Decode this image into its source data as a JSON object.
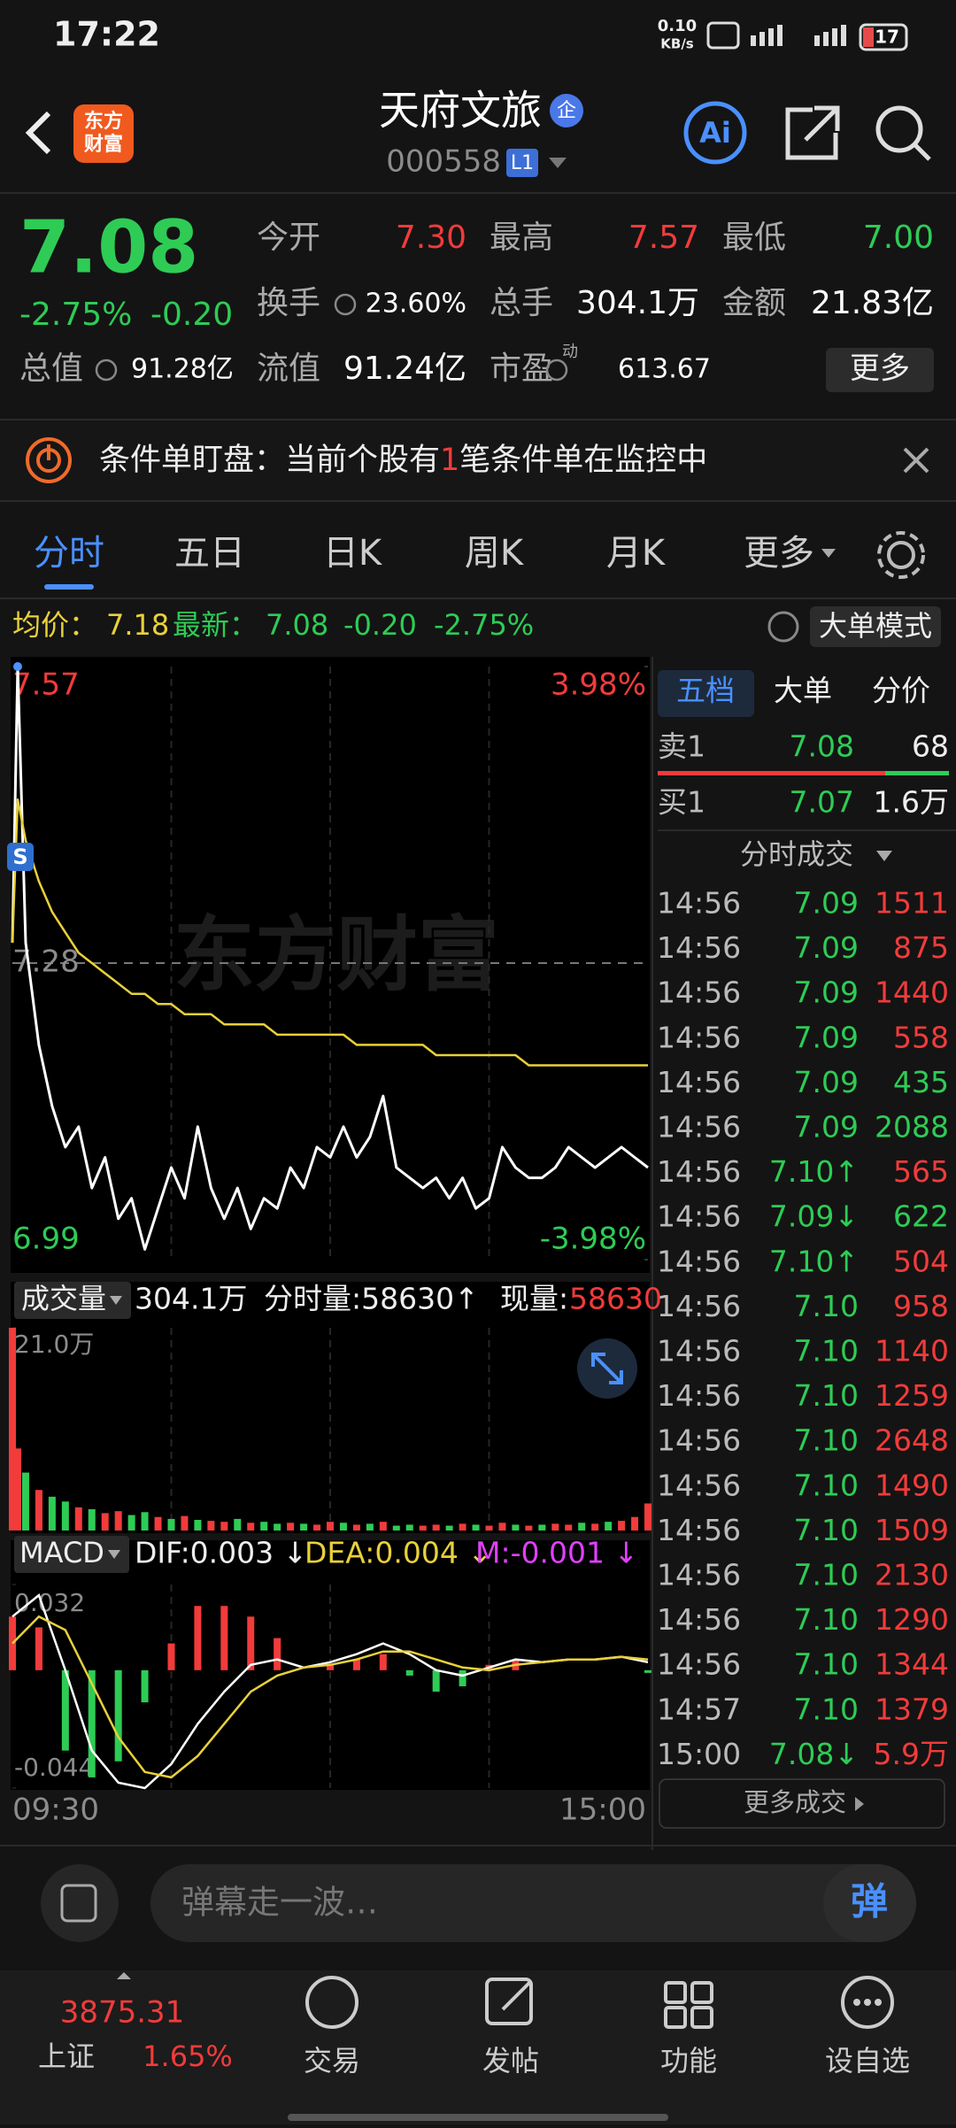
{
  "status_bar": {
    "time": "17:22",
    "net_speed": "0.10",
    "net_unit": "KB/s",
    "battery": "17"
  },
  "header": {
    "logo": [
      "东方",
      "财富"
    ],
    "title": "天府文旅",
    "badge": "企",
    "code": "000558",
    "level": "L1",
    "ai": "Ai"
  },
  "quote": {
    "price": "7.08",
    "change_pct": "-2.75%",
    "change": "-0.20",
    "more": "更多",
    "fields": [
      {
        "label": "今开",
        "value": "7.30",
        "color": "#f23b3b"
      },
      {
        "label": "最高",
        "value": "7.57",
        "color": "#f23b3b"
      },
      {
        "label": "最低",
        "value": "7.00",
        "color": "#2ecc55"
      },
      {
        "label": "换手",
        "value": "23.60%",
        "color": "#ffffff"
      },
      {
        "label": "总手",
        "value": "304.1万",
        "color": "#ffffff"
      },
      {
        "label": "金额",
        "value": "21.83亿",
        "color": "#ffffff"
      },
      {
        "label": "总值",
        "value": "91.28亿",
        "color": "#ffffff"
      },
      {
        "label": "流值",
        "value": "91.24亿",
        "color": "#ffffff"
      },
      {
        "label": "市盈",
        "superscript": "动",
        "value": "613.67",
        "color": "#ffffff"
      }
    ]
  },
  "banner": {
    "text_before": "条件单盯盘：当前个股有",
    "count": "1",
    "text_after": "笔条件单在监控中"
  },
  "tabs": {
    "items": [
      "分时",
      "五日",
      "日K",
      "周K",
      "月K",
      "更多"
    ],
    "active": 0
  },
  "info_bar": {
    "avg_label": "均价：",
    "avg": "7.18",
    "latest_label": "最新：",
    "latest": "7.08",
    "change": "-0.20",
    "change_pct": "-2.75%",
    "mode_button": "大单模式"
  },
  "price_chart": {
    "type": "line",
    "watermark": "东方财富",
    "marker": "S",
    "grid": true,
    "x": [
      "09:30",
      "09:32",
      "09:35",
      "09:40",
      "09:45",
      "09:50",
      "09:55",
      "10:00",
      "10:05",
      "10:10",
      "10:15",
      "10:20",
      "10:25",
      "10:30",
      "10:35",
      "10:40",
      "10:45",
      "10:50",
      "10:55",
      "11:00",
      "11:05",
      "11:10",
      "11:15",
      "11:20",
      "11:25",
      "11:30",
      "13:05",
      "13:10",
      "13:15",
      "13:20",
      "13:25",
      "13:30",
      "13:35",
      "13:40",
      "13:45",
      "13:50",
      "13:55",
      "14:00",
      "14:05",
      "14:10",
      "14:15",
      "14:20",
      "14:25",
      "14:30",
      "14:35",
      "14:40",
      "14:45",
      "14:50",
      "14:55",
      "15:00"
    ],
    "series": [
      {
        "color": "#ffffff",
        "values": [
          7.3,
          7.57,
          7.3,
          7.2,
          7.14,
          7.1,
          7.12,
          7.06,
          7.09,
          7.03,
          7.05,
          7.0,
          7.04,
          7.08,
          7.05,
          7.12,
          7.06,
          7.03,
          7.06,
          7.02,
          7.05,
          7.04,
          7.08,
          7.06,
          7.1,
          7.09,
          7.12,
          7.09,
          7.11,
          7.15,
          7.08,
          7.07,
          7.06,
          7.07,
          7.05,
          7.07,
          7.04,
          7.05,
          7.1,
          7.08,
          7.07,
          7.07,
          7.08,
          7.1,
          7.09,
          7.08,
          7.09,
          7.1,
          7.09,
          7.08
        ]
      },
      {
        "color": "#e8d13a",
        "values": [
          7.3,
          7.44,
          7.4,
          7.36,
          7.33,
          7.31,
          7.29,
          7.28,
          7.27,
          7.26,
          7.25,
          7.25,
          7.24,
          7.24,
          7.23,
          7.23,
          7.23,
          7.22,
          7.22,
          7.22,
          7.22,
          7.21,
          7.21,
          7.21,
          7.21,
          7.21,
          7.21,
          7.2,
          7.2,
          7.2,
          7.2,
          7.2,
          7.2,
          7.19,
          7.19,
          7.19,
          7.19,
          7.19,
          7.19,
          7.19,
          7.18,
          7.18,
          7.18,
          7.18,
          7.18,
          7.18,
          7.18,
          7.18,
          7.18,
          7.18
        ]
      }
    ],
    "ylim": [
      6.99,
      7.57
    ],
    "yticks": [
      6.99,
      7.28,
      7.57
    ],
    "ytick_colors": [
      "#2ecc55",
      "#8c8c8c",
      "#f23b3b"
    ],
    "y2lim": [
      -3.98,
      3.98
    ],
    "y2ticks": [
      {
        "value": -3.98,
        "label": "-3.98%"
      },
      {
        "value": 3.98,
        "label": "3.98%"
      }
    ],
    "y2tick_colors": [
      "#2ecc55",
      "#f23b3b"
    ]
  },
  "volume_chart": {
    "type": "bar",
    "menu": "成交量",
    "total": "304.1万",
    "interval_label": "分时量:58630↑",
    "current_label": "现量:",
    "current": "58630",
    "values": [
      21.0,
      8.5,
      6.0,
      4.2,
      3.5,
      3.0,
      2.4,
      2.2,
      1.8,
      2.0,
      1.6,
      1.9,
      1.4,
      1.2,
      1.5,
      1.1,
      1.0,
      0.9,
      1.2,
      0.8,
      0.9,
      0.7,
      0.8,
      0.7,
      0.6,
      0.9,
      0.8,
      0.6,
      0.7,
      0.9,
      0.5,
      0.6,
      0.5,
      0.6,
      0.5,
      0.7,
      0.6,
      0.5,
      0.8,
      0.6,
      0.5,
      0.6,
      0.7,
      0.6,
      0.8,
      0.7,
      0.9,
      1.0,
      1.4,
      2.8
    ],
    "colors": [
      "#f23b3b",
      "#f23b3b",
      "#2ecc55",
      "#f23b3b",
      "#2ecc55",
      "#2ecc55",
      "#f23b3b",
      "#2ecc55",
      "#f23b3b",
      "#f23b3b",
      "#2ecc55",
      "#2ecc55",
      "#f23b3b",
      "#2ecc55",
      "#f23b3b",
      "#2ecc55",
      "#f23b3b",
      "#f23b3b",
      "#2ecc55",
      "#f23b3b",
      "#2ecc55",
      "#2ecc55",
      "#f23b3b",
      "#2ecc55",
      "#f23b3b",
      "#f23b3b",
      "#2ecc55",
      "#f23b3b",
      "#2ecc55",
      "#f23b3b",
      "#2ecc55",
      "#2ecc55",
      "#f23b3b",
      "#f23b3b",
      "#2ecc55",
      "#f23b3b",
      "#2ecc55",
      "#f23b3b",
      "#f23b3b",
      "#2ecc55",
      "#f23b3b",
      "#2ecc55",
      "#f23b3b",
      "#f23b3b",
      "#2ecc55",
      "#f23b3b",
      "#2ecc55",
      "#f23b3b",
      "#f23b3b",
      "#f23b3b"
    ],
    "ylim": [
      0,
      21
    ],
    "yticks": [
      {
        "value": 21,
        "label": "21.0万"
      }
    ]
  },
  "macd_chart": {
    "type": "macd",
    "menu": "MACD",
    "dif_label": "DIF:0.003 ↓",
    "dea_label": "DEA:0.004 ↓",
    "m_label": "M:-0.001 ↓",
    "x": [
      "09:30",
      "09:40",
      "09:50",
      "10:00",
      "10:10",
      "10:20",
      "10:30",
      "10:40",
      "10:50",
      "11:00",
      "11:10",
      "11:20",
      "11:30",
      "13:10",
      "13:20",
      "13:30",
      "13:40",
      "13:50",
      "14:00",
      "14:10",
      "14:20",
      "14:30",
      "14:40",
      "14:50",
      "15:00"
    ],
    "series": [
      {
        "color": "#ffffff",
        "values": [
          0.02,
          0.028,
          0.0,
          -0.03,
          -0.042,
          -0.044,
          -0.035,
          -0.02,
          -0.008,
          0.002,
          0.004,
          0.001,
          0.003,
          0.006,
          0.01,
          0.006,
          0.0,
          -0.002,
          0.001,
          0.004,
          0.003,
          0.004,
          0.004,
          0.005,
          0.003
        ]
      },
      {
        "color": "#e8d13a",
        "values": [
          0.01,
          0.02,
          0.015,
          -0.005,
          -0.025,
          -0.038,
          -0.04,
          -0.032,
          -0.02,
          -0.008,
          -0.002,
          0.001,
          0.002,
          0.004,
          0.007,
          0.007,
          0.004,
          0.001,
          0.0,
          0.002,
          0.003,
          0.004,
          0.004,
          0.005,
          0.004
        ]
      }
    ],
    "histogram": [
      0.02,
      0.016,
      -0.03,
      -0.04,
      -0.034,
      -0.012,
      0.01,
      0.024,
      0.024,
      0.02,
      0.012,
      0.0,
      0.002,
      0.004,
      0.006,
      -0.002,
      -0.008,
      -0.006,
      0.002,
      0.004,
      0.0,
      0.0,
      0.0,
      0.0,
      -0.001
    ],
    "positive_color": "#f23b3b",
    "negative_color": "#2ecc55",
    "ylim": [
      -0.044,
      0.032
    ],
    "yticks": [
      -0.044,
      0.032
    ],
    "xticks": [
      "09:30",
      "15:00"
    ]
  },
  "order_book": {
    "tabs": [
      "五档",
      "大单",
      "分价"
    ],
    "active": 0,
    "asks": [
      {
        "label": "卖1",
        "price": "7.08",
        "volume": "68"
      }
    ],
    "bids": [
      {
        "label": "买1",
        "price": "7.07",
        "volume": "1.6万"
      }
    ]
  },
  "trades": {
    "title": "分时成交",
    "more": "更多成交",
    "rows": [
      {
        "time": "14:56",
        "price": "7.09",
        "volume": "1511",
        "color": "#f23b3b"
      },
      {
        "time": "14:56",
        "price": "7.09",
        "volume": "875",
        "color": "#f23b3b"
      },
      {
        "time": "14:56",
        "price": "7.09",
        "volume": "1440",
        "color": "#f23b3b"
      },
      {
        "time": "14:56",
        "price": "7.09",
        "volume": "558",
        "color": "#f23b3b"
      },
      {
        "time": "14:56",
        "price": "7.09",
        "volume": "435",
        "color": "#2ecc55"
      },
      {
        "time": "14:56",
        "price": "7.09",
        "volume": "2088",
        "color": "#2ecc55"
      },
      {
        "time": "14:56",
        "price": "7.10↑",
        "volume": "565",
        "color": "#f23b3b"
      },
      {
        "time": "14:56",
        "price": "7.09↓",
        "volume": "622",
        "color": "#2ecc55"
      },
      {
        "time": "14:56",
        "price": "7.10↑",
        "volume": "504",
        "color": "#f23b3b"
      },
      {
        "time": "14:56",
        "price": "7.10",
        "volume": "958",
        "color": "#f23b3b"
      },
      {
        "time": "14:56",
        "price": "7.10",
        "volume": "1140",
        "color": "#f23b3b"
      },
      {
        "time": "14:56",
        "price": "7.10",
        "volume": "1259",
        "color": "#f23b3b"
      },
      {
        "time": "14:56",
        "price": "7.10",
        "volume": "2648",
        "color": "#f23b3b"
      },
      {
        "time": "14:56",
        "price": "7.10",
        "volume": "1490",
        "color": "#f23b3b"
      },
      {
        "time": "14:56",
        "price": "7.10",
        "volume": "1509",
        "color": "#f23b3b"
      },
      {
        "time": "14:56",
        "price": "7.10",
        "volume": "2130",
        "color": "#f23b3b"
      },
      {
        "time": "14:56",
        "price": "7.10",
        "volume": "1290",
        "color": "#f23b3b"
      },
      {
        "time": "14:56",
        "price": "7.10",
        "volume": "1344",
        "color": "#f23b3b"
      },
      {
        "time": "14:57",
        "price": "7.10",
        "volume": "1379",
        "color": "#f23b3b"
      },
      {
        "time": "15:00",
        "price": "7.08↓",
        "volume": "5.9万",
        "color": "#f23b3b"
      }
    ]
  },
  "input_bar": {
    "placeholder": "弹幕走一波…",
    "button": "弹"
  },
  "bottom_nav": {
    "index_name": "上证",
    "index_value": "3875.31",
    "index_change": "1.65%",
    "items": [
      "交易",
      "发帖",
      "功能",
      "设自选"
    ]
  }
}
